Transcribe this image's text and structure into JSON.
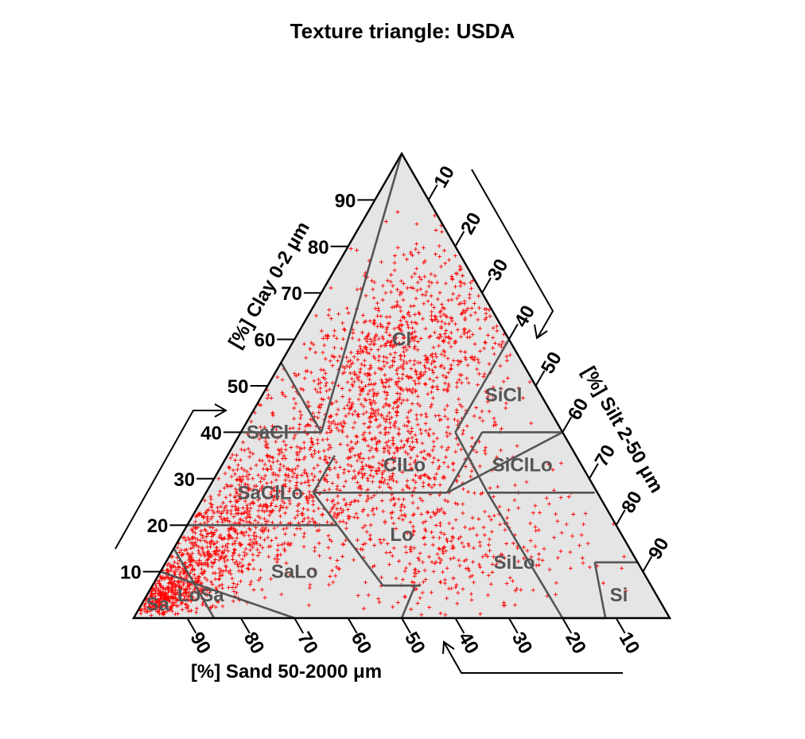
{
  "chart_data": {
    "type": "scatter",
    "title": "Texture triangle: USDA",
    "axes": {
      "clay": {
        "label": "[%] Clay 0-2 μm",
        "ticks": [
          10,
          20,
          30,
          40,
          50,
          60,
          70,
          80,
          90
        ]
      },
      "silt": {
        "label": "[%] Silt 2-50 μm",
        "ticks": [
          10,
          20,
          30,
          40,
          50,
          60,
          70,
          80,
          90
        ]
      },
      "sand": {
        "label": "[%] Sand 50-2000 μm",
        "ticks": [
          90,
          80,
          70,
          60,
          50,
          40,
          30,
          20,
          10
        ]
      }
    },
    "tick_labels": [
      "10",
      "20",
      "30",
      "40",
      "50",
      "60",
      "70",
      "80",
      "90"
    ],
    "classes": [
      {
        "label": "Cl",
        "clay": 60,
        "silt": 20
      },
      {
        "label": "SiCl",
        "clay": 48,
        "silt": 45
      },
      {
        "label": "SaCl",
        "clay": 40,
        "silt": 5
      },
      {
        "label": "ClLo",
        "clay": 33,
        "silt": 34
      },
      {
        "label": "SiClLo",
        "clay": 33,
        "silt": 56
      },
      {
        "label": "SaClLo",
        "clay": 27,
        "silt": 12
      },
      {
        "label": "Lo",
        "clay": 18,
        "silt": 41
      },
      {
        "label": "SiLo",
        "clay": 12,
        "silt": 65
      },
      {
        "label": "SaLo",
        "clay": 10,
        "silt": 25
      },
      {
        "label": "Si",
        "clay": 5,
        "silt": 88
      },
      {
        "label": "LoSa",
        "clay": 5,
        "silt": 10
      },
      {
        "label": "Sa",
        "clay": 3,
        "silt": 3
      }
    ],
    "series": [
      {
        "color": "#ff0000",
        "marker": "+"
      }
    ],
    "background": "#e5e5e5",
    "boundary_color": "#555555"
  }
}
